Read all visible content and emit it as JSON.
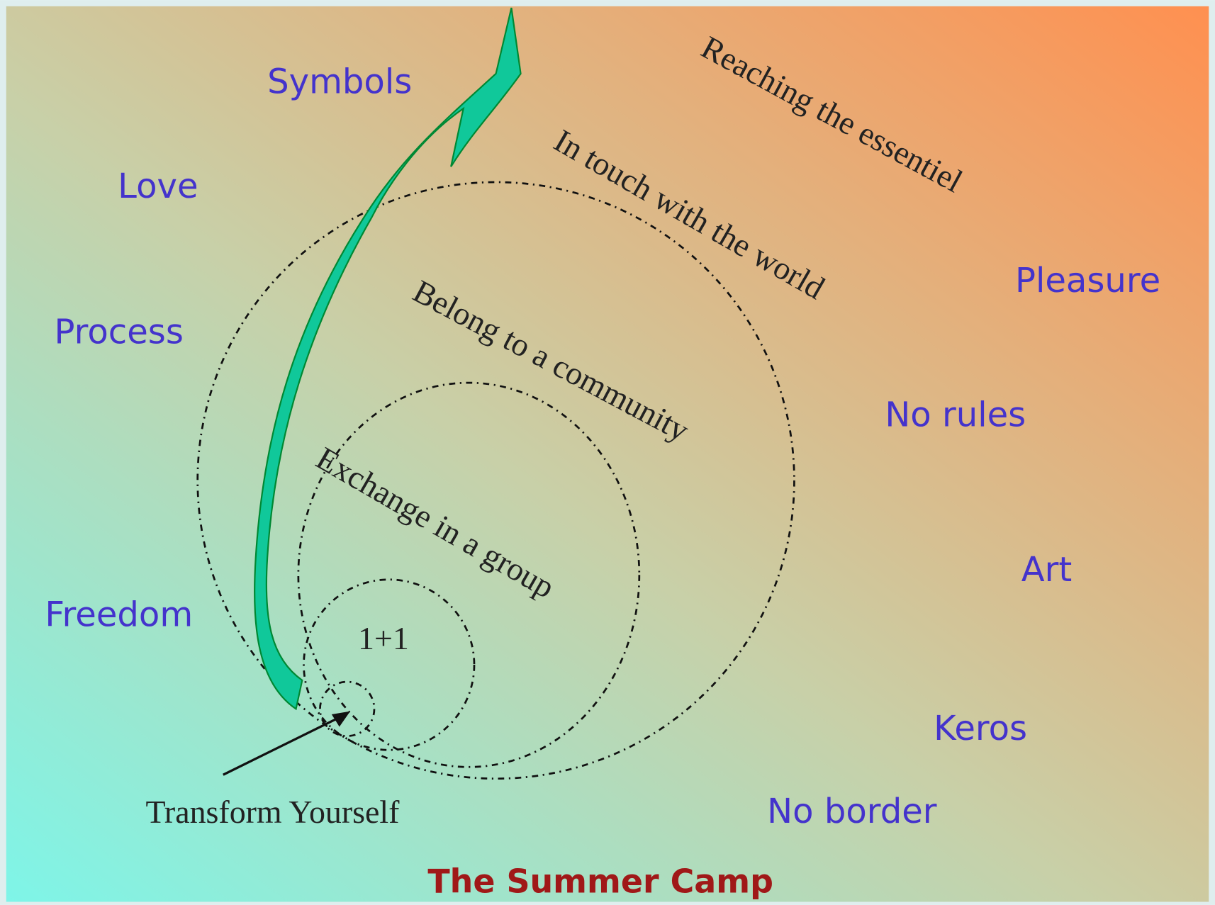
{
  "title": "The Summer Camp",
  "values": [
    "Symbols",
    "Love",
    "Process",
    "Freedom",
    "Pleasure",
    "No rules",
    "Art",
    "Keros",
    "No border"
  ],
  "levels": [
    "1+1",
    "Exchange in a group",
    "Belong to a community",
    "In touch with the world",
    "Reaching the essentiel"
  ],
  "pointer": "Transform Yourself"
}
